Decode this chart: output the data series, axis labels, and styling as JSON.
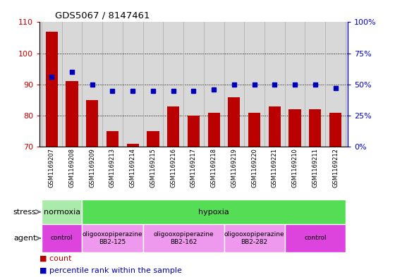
{
  "title": "GDS5067 / 8147461",
  "samples": [
    "GSM1169207",
    "GSM1169208",
    "GSM1169209",
    "GSM1169213",
    "GSM1169214",
    "GSM1169215",
    "GSM1169216",
    "GSM1169217",
    "GSM1169218",
    "GSM1169219",
    "GSM1169220",
    "GSM1169221",
    "GSM1169210",
    "GSM1169211",
    "GSM1169212"
  ],
  "counts": [
    107,
    91,
    85,
    75,
    71,
    75,
    83,
    80,
    81,
    86,
    81,
    83,
    82,
    82,
    81
  ],
  "percentiles": [
    56,
    60,
    50,
    45,
    45,
    45,
    45,
    45,
    46,
    50,
    50,
    50,
    50,
    50,
    47
  ],
  "ylim_left": [
    70,
    110
  ],
  "ylim_right": [
    0,
    100
  ],
  "yticks_left": [
    70,
    80,
    90,
    100,
    110
  ],
  "yticks_right": [
    0,
    25,
    50,
    75,
    100
  ],
  "ytick_labels_right": [
    "0%",
    "25%",
    "50%",
    "75%",
    "100%"
  ],
  "bar_color": "#bb0000",
  "dot_color": "#0000bb",
  "bg_color": "#d8d8d8",
  "stress_groups": [
    {
      "label": "normoxia",
      "start": 0,
      "end": 2,
      "color": "#aaeaaa"
    },
    {
      "label": "hypoxia",
      "start": 2,
      "end": 15,
      "color": "#55dd55"
    }
  ],
  "agent_groups": [
    {
      "label": "control",
      "start": 0,
      "end": 2,
      "color": "#dd44dd",
      "text_lines": [
        "control"
      ]
    },
    {
      "label": "oligooxopiperazine\nBB2-125",
      "start": 2,
      "end": 5,
      "color": "#ee99ee",
      "text_lines": [
        "oligooxopiperazine",
        "BB2-125"
      ]
    },
    {
      "label": "oligooxopiperazine\nBB2-162",
      "start": 5,
      "end": 9,
      "color": "#ee99ee",
      "text_lines": [
        "oligooxopiperazine",
        "BB2-162"
      ]
    },
    {
      "label": "oligooxopiperazine\nBB2-282",
      "start": 9,
      "end": 12,
      "color": "#ee99ee",
      "text_lines": [
        "oligooxopiperazine",
        "BB2-282"
      ]
    },
    {
      "label": "control",
      "start": 12,
      "end": 15,
      "color": "#dd44dd",
      "text_lines": [
        "control"
      ]
    }
  ],
  "left_tick_color": "#cc0000",
  "right_tick_color": "#0000cc"
}
